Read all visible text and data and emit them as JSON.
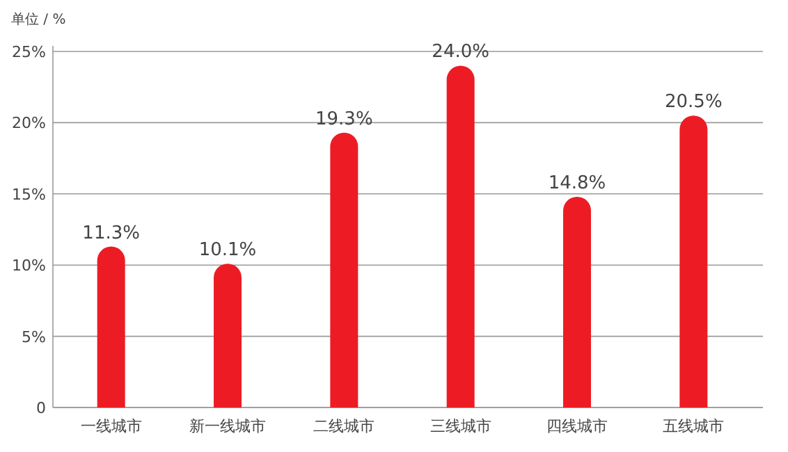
{
  "chart_data": {
    "type": "bar",
    "ylabel": "单位 / %",
    "categories": [
      "一线城市",
      "新一线城市",
      "二线城市",
      "三线城市",
      "四线城市",
      "五线城市"
    ],
    "values": [
      11.3,
      10.1,
      19.3,
      24.0,
      14.8,
      20.5
    ],
    "value_labels": [
      "11.3%",
      "10.1%",
      "19.3%",
      "24.0%",
      "14.8%",
      "20.5%"
    ],
    "color": "#ed1c24",
    "ylim": [
      0,
      25
    ],
    "yticks": [
      0,
      {
        "value": 5,
        "label": "5%"
      },
      {
        "value": 10,
        "label": "10%"
      },
      {
        "value": 15,
        "label": "15%"
      },
      {
        "value": 20,
        "label": "20%"
      },
      {
        "value": 25,
        "label": "25%"
      }
    ],
    "grid": "y"
  }
}
